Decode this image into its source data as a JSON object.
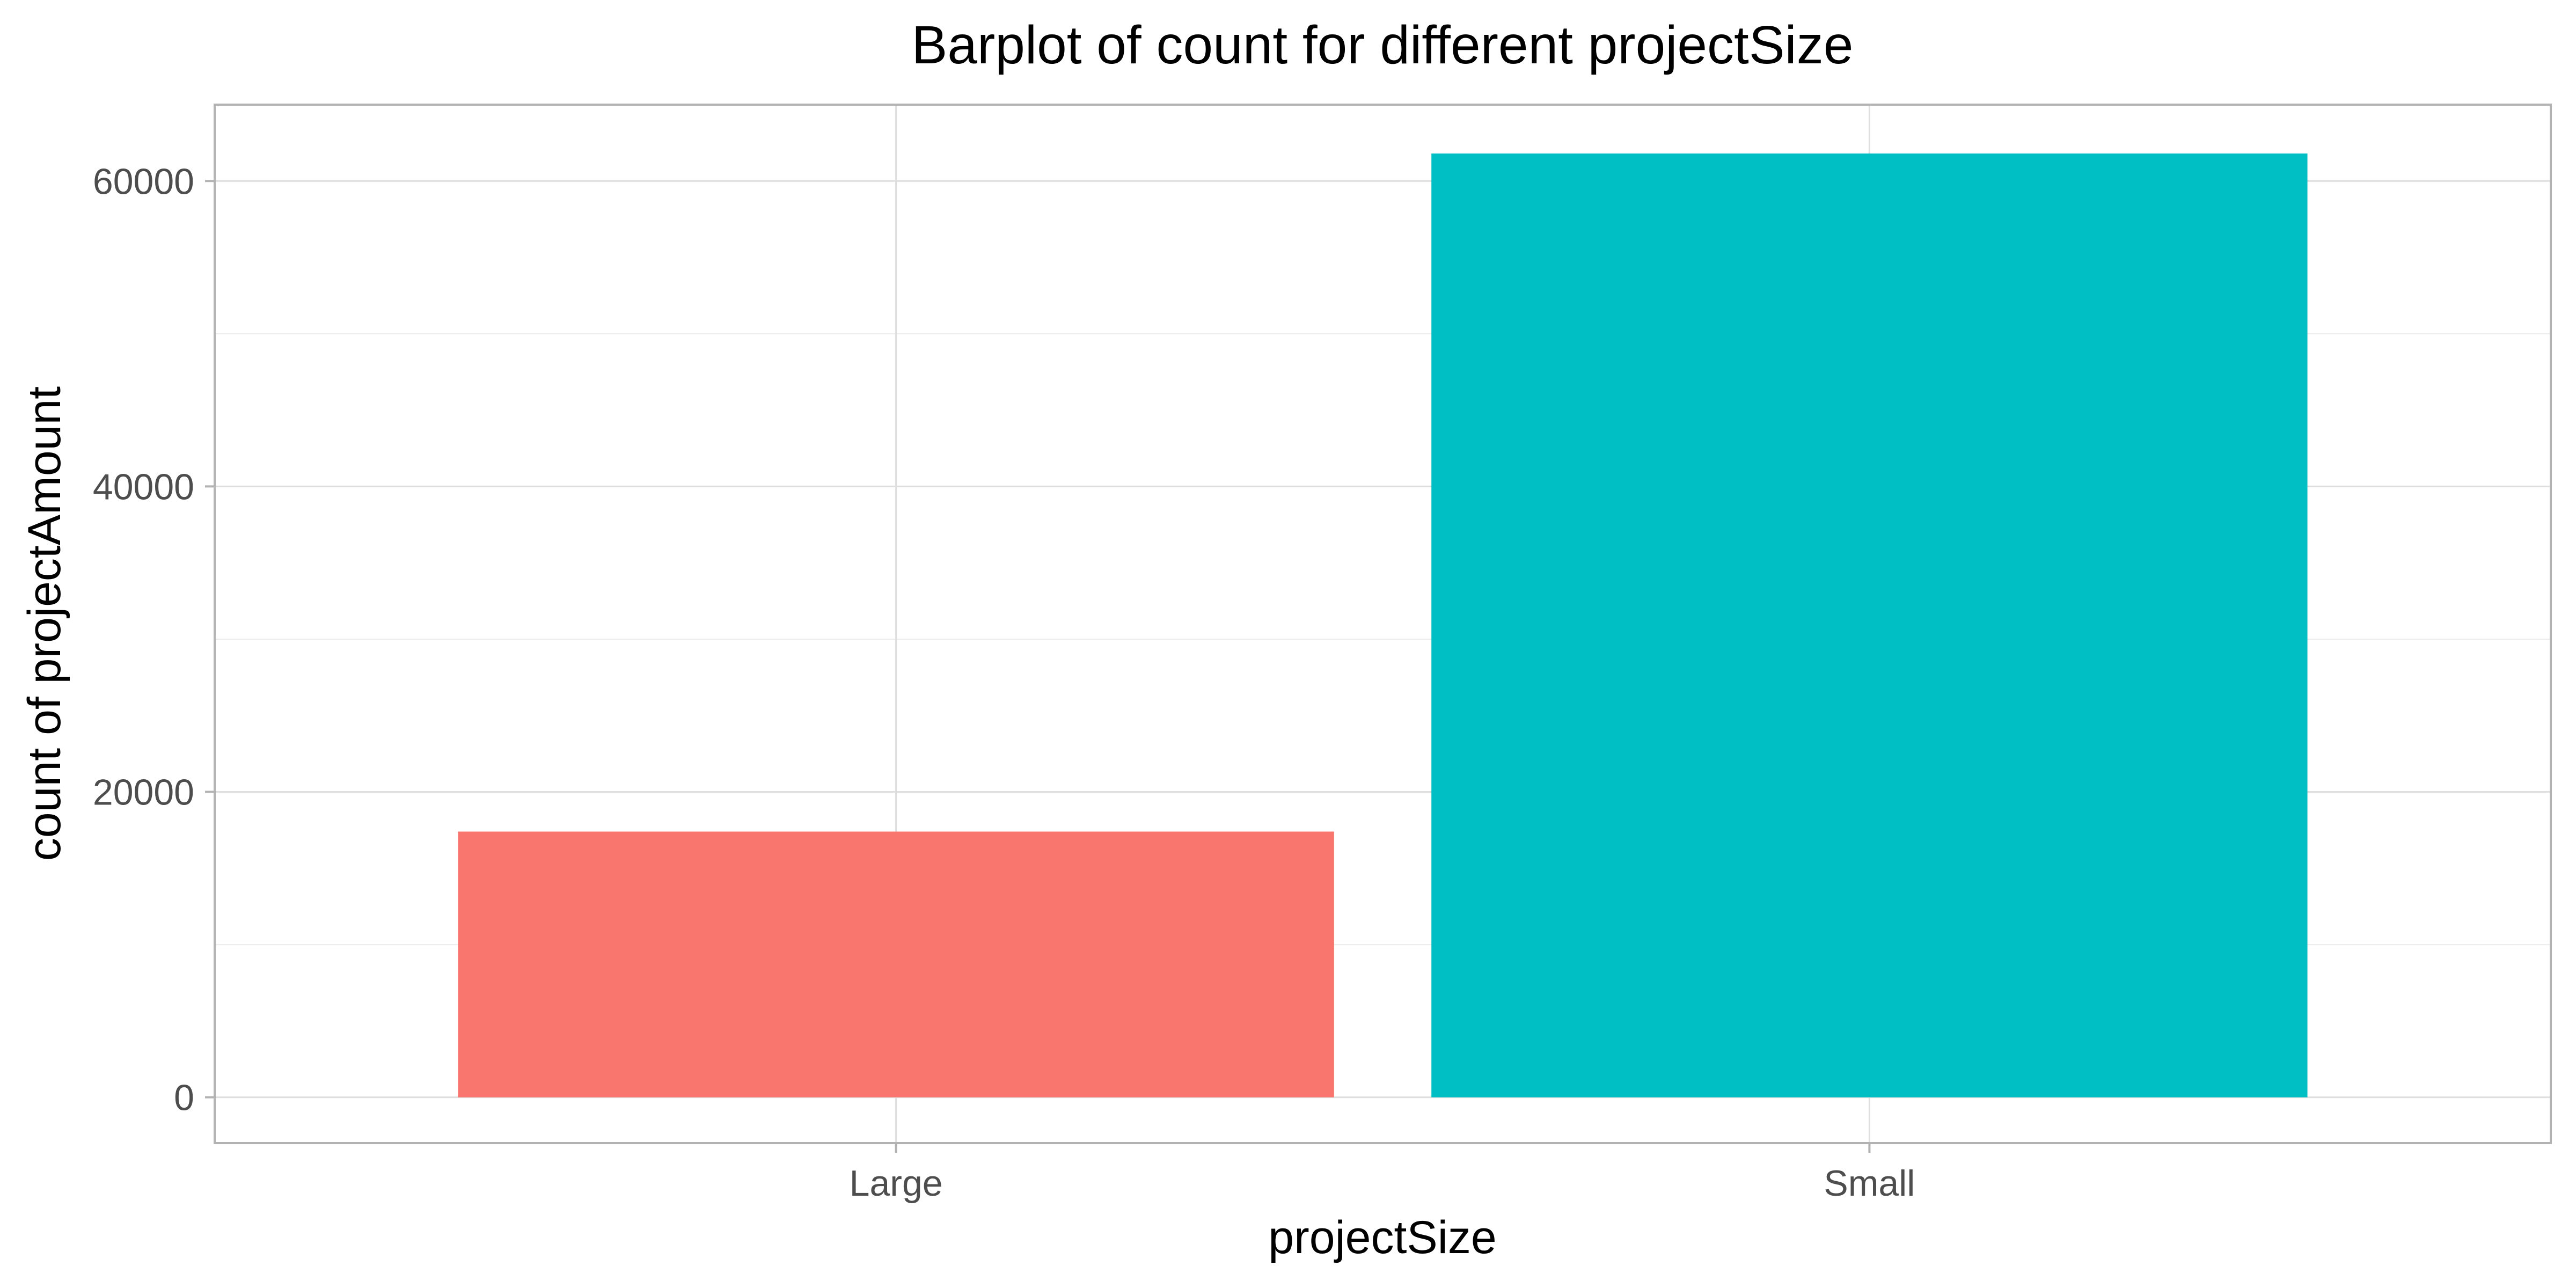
{
  "chart_data": {
    "type": "bar",
    "title": "Barplot of count for different projectSize",
    "xlabel": "projectSize",
    "ylabel": "count of projectAmount",
    "categories": [
      "Large",
      "Small"
    ],
    "values": [
      17400,
      61800
    ],
    "colors": [
      "#F8766D",
      "#00BFC4"
    ],
    "ylim": [
      -3000,
      65000
    ],
    "yticks": [
      0,
      20000,
      40000,
      60000
    ],
    "ytick_labels": [
      "0",
      "20000",
      "40000",
      "60000"
    ],
    "grid": true,
    "legend": "none"
  }
}
